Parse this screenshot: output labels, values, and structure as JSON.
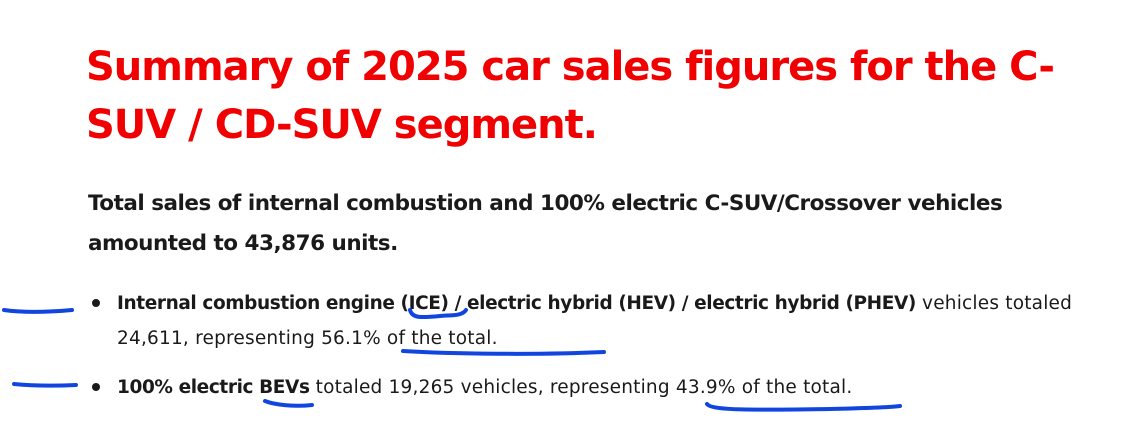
{
  "title": "Summary of 2025 car sales figures for the C-SUV / CD-SUV segment.",
  "summary": "Total sales of internal combustion and 100% electric C-SUV/Crossover vehicles amounted to 43,876 units.",
  "bullets": [
    {
      "bold": "Internal combustion engine (ICE) / electric hybrid (HEV) / electric hybrid (PHEV)",
      "text": " vehicles totaled 24,611, representing 56.1% of the total."
    },
    {
      "bold": "100% electric BEVs",
      "text": " totaled 19,265 vehicles, representing 43.9% of the total."
    }
  ],
  "colors": {
    "title": "#f00000",
    "text": "#1a1a1a",
    "annotation_ink": "#1045e0"
  }
}
